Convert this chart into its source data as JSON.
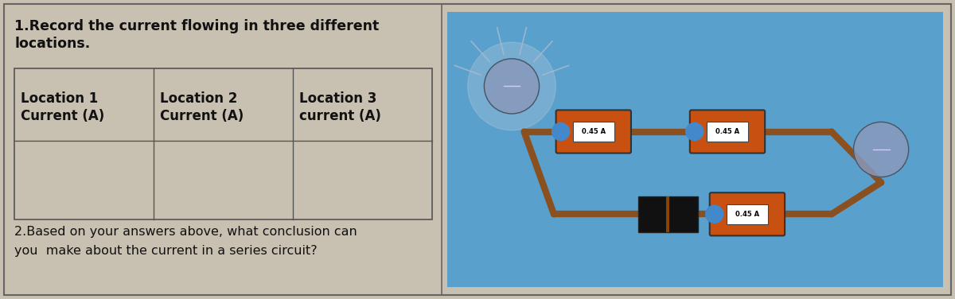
{
  "bg_color": "#c8c0b0",
  "outer_border_color": "#777777",
  "text_color": "#111111",
  "title1": "1.Record the current flowing in three different",
  "title2": "locations.",
  "col_headers": [
    "Location 1\nCurrent (A)",
    "Location 2\nCurrent (A)",
    "Location 3\ncurrent (A)"
  ],
  "question2_line1": "2.Based on your answers above, what conclusion can",
  "question2_line2": "you  make about the current in a series circuit?",
  "image_bg_color": "#5aA0cc",
  "title_fontsize": 12.5,
  "header_fontsize": 12.0,
  "question_fontsize": 11.5,
  "wire_color": "#8B5020",
  "ammeter_color": "#c85010",
  "ammeter_label": "0.45 A",
  "battery_color": "#111111",
  "bulb_color": "#8899bb"
}
